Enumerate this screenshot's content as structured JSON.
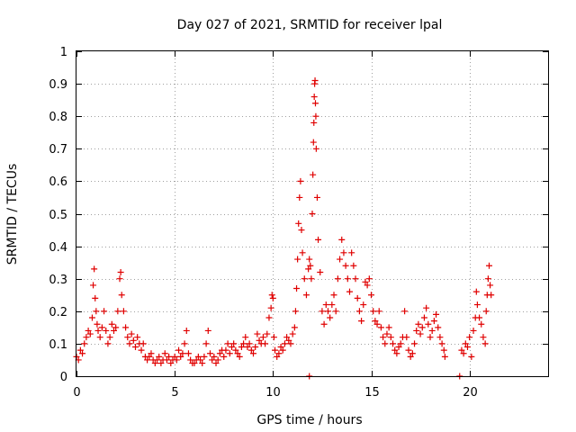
{
  "chart_data": {
    "type": "scatter",
    "title": "Day 027 of 2021, SRMTID for receiver lpal",
    "xlabel": "GPS time / hours",
    "ylabel": "SRMTID / TECUs",
    "xlim": [
      0,
      24
    ],
    "ylim": [
      0,
      1
    ],
    "xticks": [
      0,
      5,
      10,
      15,
      20
    ],
    "yticks": [
      0,
      0.1,
      0.2,
      0.3,
      0.4,
      0.5,
      0.6,
      0.7,
      0.8,
      0.9,
      1
    ],
    "ytick_labels": [
      "0",
      "0.1",
      "0.2",
      "0.3",
      "0.4",
      "0.5",
      "0.6",
      "0.7",
      "0.8",
      "0.9",
      "1"
    ],
    "grid": true,
    "marker": "+",
    "series": [
      {
        "name": "SRMTID",
        "color": "#e00000",
        "points": [
          [
            0.0,
            0.06
          ],
          [
            0.1,
            0.05
          ],
          [
            0.2,
            0.08
          ],
          [
            0.3,
            0.07
          ],
          [
            0.4,
            0.1
          ],
          [
            0.5,
            0.12
          ],
          [
            0.6,
            0.14
          ],
          [
            0.7,
            0.13
          ],
          [
            0.8,
            0.18
          ],
          [
            0.85,
            0.28
          ],
          [
            0.9,
            0.33
          ],
          [
            0.95,
            0.24
          ],
          [
            1.0,
            0.2
          ],
          [
            1.05,
            0.16
          ],
          [
            1.1,
            0.14
          ],
          [
            1.2,
            0.12
          ],
          [
            1.3,
            0.15
          ],
          [
            1.4,
            0.2
          ],
          [
            1.5,
            0.14
          ],
          [
            1.6,
            0.1
          ],
          [
            1.7,
            0.12
          ],
          [
            1.8,
            0.16
          ],
          [
            1.9,
            0.14
          ],
          [
            2.0,
            0.15
          ],
          [
            2.1,
            0.2
          ],
          [
            2.2,
            0.3
          ],
          [
            2.25,
            0.32
          ],
          [
            2.3,
            0.25
          ],
          [
            2.4,
            0.2
          ],
          [
            2.5,
            0.15
          ],
          [
            2.6,
            0.12
          ],
          [
            2.7,
            0.1
          ],
          [
            2.8,
            0.13
          ],
          [
            2.9,
            0.11
          ],
          [
            3.0,
            0.09
          ],
          [
            3.1,
            0.12
          ],
          [
            3.2,
            0.1
          ],
          [
            3.3,
            0.08
          ],
          [
            3.4,
            0.1
          ],
          [
            3.5,
            0.06
          ],
          [
            3.6,
            0.05
          ],
          [
            3.7,
            0.06
          ],
          [
            3.8,
            0.07
          ],
          [
            3.9,
            0.05
          ],
          [
            4.0,
            0.04
          ],
          [
            4.1,
            0.05
          ],
          [
            4.2,
            0.06
          ],
          [
            4.3,
            0.04
          ],
          [
            4.4,
            0.05
          ],
          [
            4.5,
            0.07
          ],
          [
            4.6,
            0.05
          ],
          [
            4.7,
            0.06
          ],
          [
            4.8,
            0.04
          ],
          [
            4.9,
            0.05
          ],
          [
            5.0,
            0.06
          ],
          [
            5.1,
            0.05
          ],
          [
            5.2,
            0.08
          ],
          [
            5.3,
            0.06
          ],
          [
            5.4,
            0.07
          ],
          [
            5.5,
            0.1
          ],
          [
            5.6,
            0.14
          ],
          [
            5.7,
            0.07
          ],
          [
            5.8,
            0.05
          ],
          [
            5.9,
            0.04
          ],
          [
            6.0,
            0.04
          ],
          [
            6.1,
            0.05
          ],
          [
            6.2,
            0.06
          ],
          [
            6.3,
            0.05
          ],
          [
            6.4,
            0.04
          ],
          [
            6.5,
            0.06
          ],
          [
            6.6,
            0.1
          ],
          [
            6.7,
            0.14
          ],
          [
            6.8,
            0.07
          ],
          [
            6.9,
            0.05
          ],
          [
            7.0,
            0.06
          ],
          [
            7.1,
            0.04
          ],
          [
            7.2,
            0.05
          ],
          [
            7.3,
            0.07
          ],
          [
            7.4,
            0.08
          ],
          [
            7.5,
            0.06
          ],
          [
            7.6,
            0.08
          ],
          [
            7.7,
            0.1
          ],
          [
            7.8,
            0.07
          ],
          [
            7.9,
            0.09
          ],
          [
            8.0,
            0.1
          ],
          [
            8.1,
            0.08
          ],
          [
            8.2,
            0.07
          ],
          [
            8.3,
            0.06
          ],
          [
            8.4,
            0.09
          ],
          [
            8.5,
            0.1
          ],
          [
            8.6,
            0.12
          ],
          [
            8.7,
            0.09
          ],
          [
            8.8,
            0.1
          ],
          [
            8.9,
            0.08
          ],
          [
            9.0,
            0.07
          ],
          [
            9.1,
            0.09
          ],
          [
            9.2,
            0.13
          ],
          [
            9.3,
            0.11
          ],
          [
            9.4,
            0.1
          ],
          [
            9.5,
            0.12
          ],
          [
            9.6,
            0.1
          ],
          [
            9.7,
            0.13
          ],
          [
            9.8,
            0.18
          ],
          [
            9.9,
            0.21
          ],
          [
            9.95,
            0.25
          ],
          [
            10.0,
            0.24
          ],
          [
            10.05,
            0.12
          ],
          [
            10.1,
            0.08
          ],
          [
            10.2,
            0.06
          ],
          [
            10.3,
            0.07
          ],
          [
            10.4,
            0.09
          ],
          [
            10.5,
            0.08
          ],
          [
            10.6,
            0.1
          ],
          [
            10.7,
            0.12
          ],
          [
            10.8,
            0.11
          ],
          [
            10.9,
            0.1
          ],
          [
            11.0,
            0.13
          ],
          [
            11.1,
            0.15
          ],
          [
            11.15,
            0.2
          ],
          [
            11.2,
            0.27
          ],
          [
            11.25,
            0.36
          ],
          [
            11.3,
            0.47
          ],
          [
            11.35,
            0.55
          ],
          [
            11.4,
            0.6
          ],
          [
            11.45,
            0.45
          ],
          [
            11.5,
            0.38
          ],
          [
            11.6,
            0.3
          ],
          [
            11.7,
            0.25
          ],
          [
            11.8,
            0.33
          ],
          [
            11.85,
            0.36
          ],
          [
            11.9,
            0.34
          ],
          [
            11.95,
            0.3
          ],
          [
            12.0,
            0.5
          ],
          [
            12.03,
            0.62
          ],
          [
            12.06,
            0.72
          ],
          [
            12.08,
            0.78
          ],
          [
            12.1,
            0.86
          ],
          [
            12.12,
            0.9
          ],
          [
            12.14,
            0.91
          ],
          [
            12.16,
            0.84
          ],
          [
            12.18,
            0.8
          ],
          [
            12.2,
            0.7
          ],
          [
            12.25,
            0.55
          ],
          [
            12.3,
            0.42
          ],
          [
            12.4,
            0.32
          ],
          [
            12.5,
            0.2
          ],
          [
            12.6,
            0.16
          ],
          [
            12.7,
            0.22
          ],
          [
            12.8,
            0.2
          ],
          [
            12.9,
            0.18
          ],
          [
            13.0,
            0.22
          ],
          [
            13.1,
            0.25
          ],
          [
            13.2,
            0.2
          ],
          [
            13.3,
            0.3
          ],
          [
            13.4,
            0.36
          ],
          [
            13.5,
            0.42
          ],
          [
            13.6,
            0.38
          ],
          [
            13.7,
            0.34
          ],
          [
            13.8,
            0.3
          ],
          [
            13.9,
            0.26
          ],
          [
            14.0,
            0.38
          ],
          [
            14.1,
            0.34
          ],
          [
            14.2,
            0.3
          ],
          [
            14.3,
            0.24
          ],
          [
            14.4,
            0.2
          ],
          [
            14.5,
            0.17
          ],
          [
            14.6,
            0.22
          ],
          [
            14.7,
            0.29
          ],
          [
            14.8,
            0.28
          ],
          [
            14.9,
            0.3
          ],
          [
            15.0,
            0.25
          ],
          [
            15.1,
            0.2
          ],
          [
            15.2,
            0.17
          ],
          [
            15.3,
            0.16
          ],
          [
            15.4,
            0.2
          ],
          [
            15.5,
            0.15
          ],
          [
            15.6,
            0.12
          ],
          [
            15.7,
            0.1
          ],
          [
            15.8,
            0.13
          ],
          [
            15.9,
            0.15
          ],
          [
            16.0,
            0.12
          ],
          [
            16.1,
            0.1
          ],
          [
            16.2,
            0.08
          ],
          [
            16.3,
            0.07
          ],
          [
            16.4,
            0.09
          ],
          [
            16.5,
            0.1
          ],
          [
            16.6,
            0.12
          ],
          [
            16.7,
            0.2
          ],
          [
            16.8,
            0.12
          ],
          [
            16.9,
            0.08
          ],
          [
            17.0,
            0.06
          ],
          [
            17.1,
            0.07
          ],
          [
            17.2,
            0.1
          ],
          [
            17.3,
            0.14
          ],
          [
            17.4,
            0.16
          ],
          [
            17.5,
            0.13
          ],
          [
            17.6,
            0.15
          ],
          [
            17.7,
            0.18
          ],
          [
            17.8,
            0.21
          ],
          [
            17.9,
            0.16
          ],
          [
            18.0,
            0.12
          ],
          [
            18.1,
            0.14
          ],
          [
            18.2,
            0.17
          ],
          [
            18.3,
            0.19
          ],
          [
            18.4,
            0.15
          ],
          [
            18.5,
            0.12
          ],
          [
            18.6,
            0.1
          ],
          [
            18.7,
            0.08
          ],
          [
            18.75,
            0.06
          ],
          [
            19.6,
            0.08
          ],
          [
            19.7,
            0.07
          ],
          [
            19.8,
            0.1
          ],
          [
            19.9,
            0.09
          ],
          [
            20.0,
            0.12
          ],
          [
            20.1,
            0.06
          ],
          [
            20.2,
            0.14
          ],
          [
            20.3,
            0.18
          ],
          [
            20.35,
            0.26
          ],
          [
            20.4,
            0.22
          ],
          [
            20.5,
            0.18
          ],
          [
            20.6,
            0.16
          ],
          [
            20.7,
            0.12
          ],
          [
            20.8,
            0.1
          ],
          [
            20.85,
            0.2
          ],
          [
            20.9,
            0.25
          ],
          [
            20.95,
            0.3
          ],
          [
            21.0,
            0.34
          ],
          [
            21.05,
            0.28
          ],
          [
            21.1,
            0.25
          ],
          [
            11.85,
            0.0
          ],
          [
            19.5,
            0.0
          ]
        ]
      }
    ]
  }
}
